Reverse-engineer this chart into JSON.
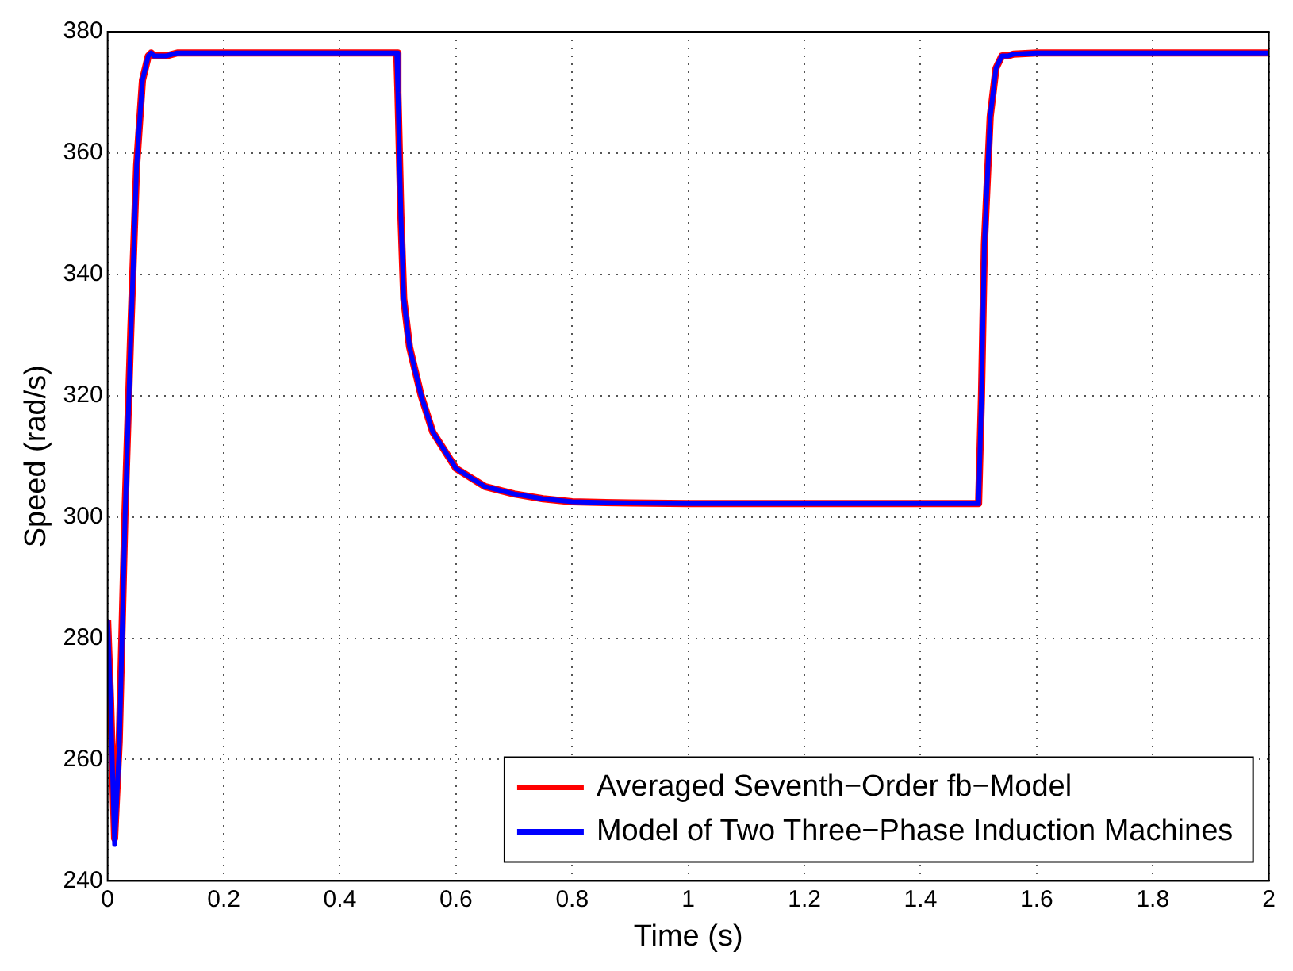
{
  "chart_data": {
    "type": "line",
    "xlabel": "Time (s)",
    "ylabel": "Speed (rad/s)",
    "xlim": [
      0,
      2
    ],
    "ylim": [
      240,
      380
    ],
    "xticks": [
      0,
      0.2,
      0.4,
      0.6,
      0.8,
      1,
      1.2,
      1.4,
      1.6,
      1.8,
      2
    ],
    "yticks": [
      240,
      260,
      280,
      300,
      320,
      340,
      360,
      380
    ],
    "grid": true,
    "legend": "bottom right",
    "marker": "none",
    "line_style": "solid",
    "series": [
      {
        "name": "Averaged Seventh−Order fb−Model",
        "color": "#ff0000",
        "x": [
          0,
          0.005,
          0.012,
          0.02,
          0.03,
          0.04,
          0.05,
          0.06,
          0.07,
          0.075,
          0.08,
          0.09,
          0.1,
          0.12,
          0.3,
          0.498,
          0.5,
          0.505,
          0.51,
          0.52,
          0.54,
          0.56,
          0.6,
          0.65,
          0.7,
          0.75,
          0.8,
          0.9,
          1.0,
          1.2,
          1.4,
          1.5,
          1.505,
          1.51,
          1.52,
          1.53,
          1.54,
          1.55,
          1.56,
          1.6,
          1.8,
          2
        ],
        "values": [
          283,
          270,
          247,
          263,
          301,
          331,
          358,
          372,
          376,
          376.5,
          376,
          376,
          376,
          376.5,
          376.5,
          376.5,
          370,
          350,
          336,
          328,
          320,
          314,
          308,
          305,
          303.8,
          303,
          302.5,
          302.3,
          302.2,
          302.2,
          302.2,
          302.2,
          320,
          345,
          366,
          374,
          376,
          376,
          376.3,
          376.5,
          376.5,
          376.5
        ]
      },
      {
        "name": "Model of Two Three−Phase Induction Machines",
        "color": "#0000ff",
        "x": [
          0,
          0.005,
          0.012,
          0.02,
          0.03,
          0.04,
          0.05,
          0.06,
          0.07,
          0.075,
          0.08,
          0.09,
          0.1,
          0.12,
          0.3,
          0.498,
          0.5,
          0.505,
          0.51,
          0.52,
          0.54,
          0.56,
          0.6,
          0.65,
          0.7,
          0.75,
          0.8,
          0.9,
          1.0,
          1.2,
          1.4,
          1.5,
          1.505,
          1.51,
          1.52,
          1.53,
          1.54,
          1.55,
          1.56,
          1.6,
          1.8,
          2
        ],
        "values": [
          283,
          270,
          246,
          262,
          300,
          330,
          358,
          372,
          376,
          376.5,
          376,
          376,
          376,
          376.5,
          376.5,
          376.5,
          370,
          350,
          336,
          328,
          320,
          314,
          308,
          305,
          303.8,
          303,
          302.5,
          302.3,
          302.2,
          302.2,
          302.2,
          302.2,
          320,
          345,
          366,
          374,
          376,
          376,
          376.3,
          376.5,
          376.5,
          376.5
        ]
      }
    ]
  }
}
